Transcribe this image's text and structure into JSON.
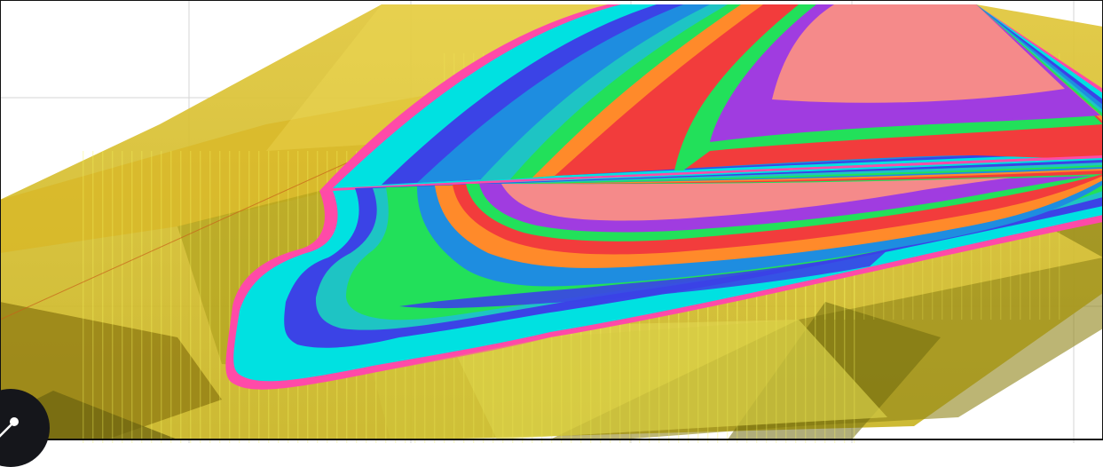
{
  "scene": {
    "kind": "3d-geological-model-view",
    "colors": {
      "background": "#ffffff",
      "frame": "#111111",
      "overburden_light": "#e8d84a",
      "overburden_dark": "#8c7a10",
      "gridline": "#d0d0d0",
      "drillhole": "#eef23a",
      "fault_trace": "#c0500e"
    },
    "layer_palette": [
      "#ff4aa8",
      "#00e1e1",
      "#3b43e6",
      "#1ec4c4",
      "#1e8de0",
      "#22e05a",
      "#ff8a2a",
      "#f23c3c",
      "#a03ce0",
      "#f58a8a"
    ]
  },
  "navigation": {
    "icon": "orbit-navigation-icon"
  }
}
